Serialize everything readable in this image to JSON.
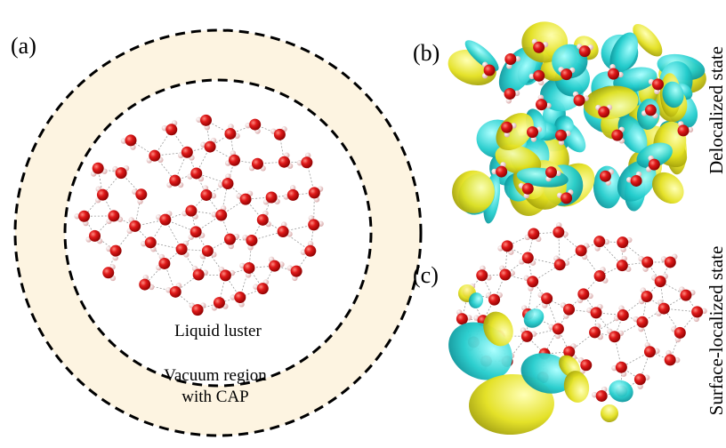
{
  "panels": [
    {
      "label": "(a)",
      "inner_label": "Liquid luster",
      "outer_label": [
        "Vacuum region",
        "with CAP"
      ]
    },
    {
      "label": "(b)",
      "state": "Delocalized state"
    },
    {
      "label": "(c)",
      "state": "Surface-localized state"
    }
  ]
}
